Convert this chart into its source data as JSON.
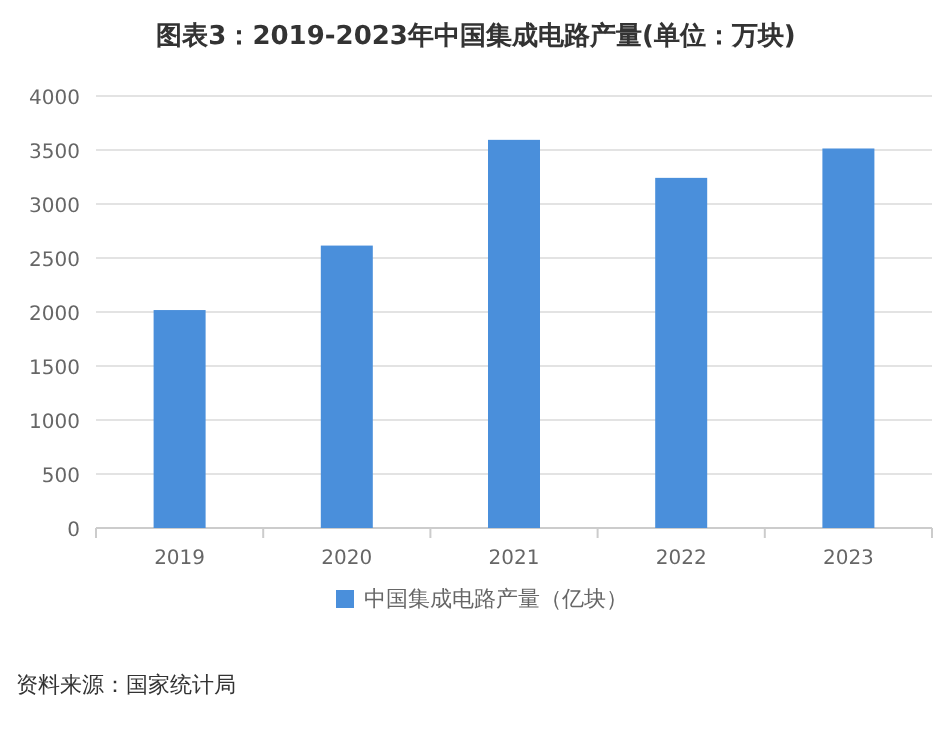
{
  "chart_data": {
    "type": "bar",
    "title": "图表3：2019-2023年中国集成电路产量(单位：万块)",
    "categories": [
      "2019",
      "2020",
      "2021",
      "2022",
      "2023"
    ],
    "series": [
      {
        "name": "中国集成电路产量（亿块）",
        "color": "#4a8fdb",
        "values": [
          2018,
          2615,
          3594,
          3242,
          3514
        ]
      }
    ],
    "ylim": [
      0,
      4000
    ],
    "yticks": [
      0,
      500,
      1000,
      1500,
      2000,
      2500,
      3000,
      3500,
      4000
    ],
    "grid": "y",
    "legend": "bottom",
    "annotations": [
      "资料来源：国家统计局"
    ]
  }
}
